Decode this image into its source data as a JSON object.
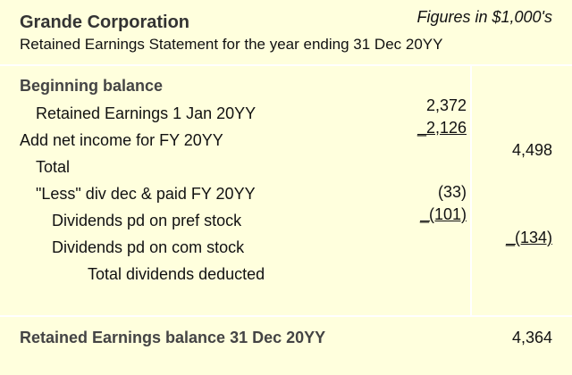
{
  "header": {
    "company": "Grande Corporation",
    "figures_note": "Figures in $1,000's",
    "subtitle": "Retained Earnings Statement for the year ending 31 Dec 20YY"
  },
  "rows": [
    {
      "label": "Beginning balance"
    },
    {
      "label": "Retained Earnings 1 Jan 20YY",
      "col1": "2,372"
    },
    {
      "label": "Add net income for FY 20YY",
      "col1": "_2,126"
    },
    {
      "label": "Total",
      "col2": "4,498"
    },
    {
      "label": "\"Less\" div dec & paid FY 20YY",
      "col1": "(33)"
    },
    {
      "label": "Dividends pd on pref stock",
      "col1": "_(101)"
    },
    {
      "label": "Dividends pd on com stock",
      "col2": "_(134)"
    },
    {
      "label": "Total dividends deducted"
    }
  ],
  "footer": {
    "label": "Retained Earnings balance 31 Dec 20YY",
    "value": "4,364"
  }
}
